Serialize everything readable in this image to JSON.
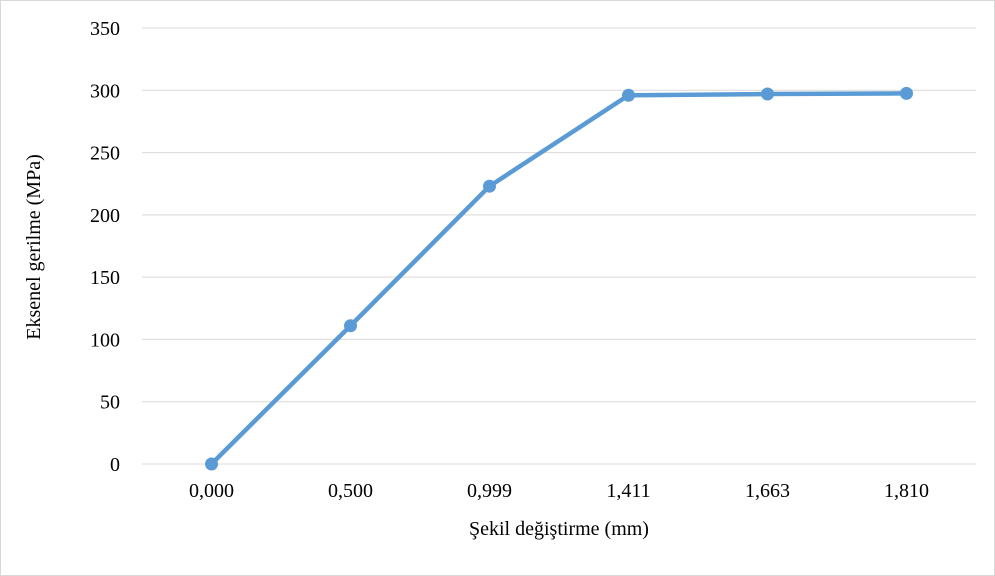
{
  "chart_data": {
    "type": "line",
    "title": "",
    "xlabel": "Şekil değiştirme (mm)",
    "ylabel": "Eksenel gerilme (MPa)",
    "categories": [
      "0,000",
      "0,500",
      "0,999",
      "1,411",
      "1,663",
      "1,810"
    ],
    "series": [
      {
        "values": [
          0,
          111,
          223,
          296,
          297,
          297.5
        ]
      }
    ],
    "ylim": [
      0,
      350
    ],
    "yticks": [
      "0",
      "50",
      "100",
      "150",
      "200",
      "250",
      "300",
      "350"
    ],
    "grid": "horizontal",
    "line_color": "#5b9bd5",
    "gridline_color": "#d9d9d9"
  }
}
